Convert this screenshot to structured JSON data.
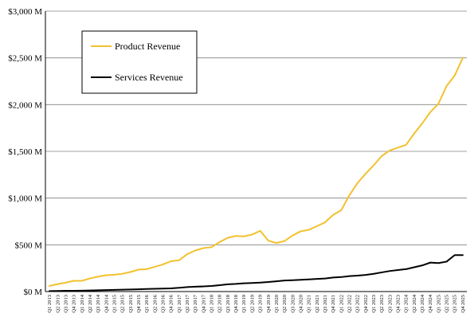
{
  "chart_data": {
    "type": "line",
    "title": "",
    "xlabel": "",
    "ylabel": "",
    "ylim": [
      0,
      3000
    ],
    "y_ticks": [
      {
        "value": 0,
        "label": "$0 M"
      },
      {
        "value": 500,
        "label": "$500 M"
      },
      {
        "value": 1000,
        "label": "$1,000 M"
      },
      {
        "value": 1500,
        "label": "$1,500 M"
      },
      {
        "value": 2000,
        "label": "$2,000 M"
      },
      {
        "value": 2500,
        "label": "$2,500 M"
      },
      {
        "value": 3000,
        "label": "$3,000 M"
      }
    ],
    "grid": "horizontal",
    "legend_position": "top-left",
    "categories": [
      "Q1 2013",
      "Q2 2013",
      "Q3 2013",
      "Q4 2013",
      "Q1 2014",
      "Q2 2014",
      "Q3 2014",
      "Q4 2014",
      "Q1 2015",
      "Q2 2015",
      "Q3 2015",
      "Q4 2015",
      "Q1 2016",
      "Q2 2016",
      "Q3 2016",
      "Q4 2016",
      "Q1 2017",
      "Q2 2017",
      "Q3 2017",
      "Q4 2017",
      "Q1 2018",
      "Q2 2018",
      "Q3 2018",
      "Q4 2018",
      "Q1 2019",
      "Q2 2019",
      "Q3 2019",
      "Q4 2019",
      "Q1 2020",
      "Q2 2020",
      "Q3 2020",
      "Q4 2020",
      "Q1 2021",
      "Q2 2021",
      "Q3 2021",
      "Q4 2021",
      "Q1 2022",
      "Q2 2022",
      "Q3 2022",
      "Q4 2022",
      "Q1 2023",
      "Q2 2023",
      "Q3 2023",
      "Q4 2023",
      "Q1 2024",
      "Q2 2024",
      "Q3 2024",
      "Q4 2024",
      "Q1 2025",
      "Q2 2025",
      "Q3 2025",
      "Q4 2025"
    ],
    "series": [
      {
        "name": "Product Revenue",
        "color": "#f2c12e",
        "values": [
          60,
          80,
          95,
          115,
          115,
          140,
          160,
          175,
          180,
          190,
          210,
          235,
          240,
          265,
          290,
          325,
          335,
          400,
          440,
          465,
          475,
          530,
          575,
          595,
          590,
          610,
          650,
          545,
          520,
          540,
          600,
          645,
          660,
          700,
          740,
          820,
          870,
          1030,
          1160,
          1260,
          1350,
          1450,
          1510,
          1540,
          1570,
          1690,
          1800,
          1920,
          2010,
          2200,
          2310,
          2500
        ]
      },
      {
        "name": "Services Revenue",
        "color": "#000000",
        "values": [
          5,
          6,
          8,
          8,
          10,
          12,
          14,
          16,
          18,
          20,
          22,
          25,
          28,
          30,
          32,
          34,
          40,
          48,
          52,
          55,
          60,
          68,
          78,
          82,
          88,
          92,
          96,
          102,
          110,
          118,
          122,
          126,
          130,
          135,
          140,
          150,
          155,
          165,
          170,
          178,
          190,
          205,
          220,
          230,
          240,
          260,
          280,
          310,
          305,
          320,
          390,
          390
        ]
      }
    ]
  }
}
